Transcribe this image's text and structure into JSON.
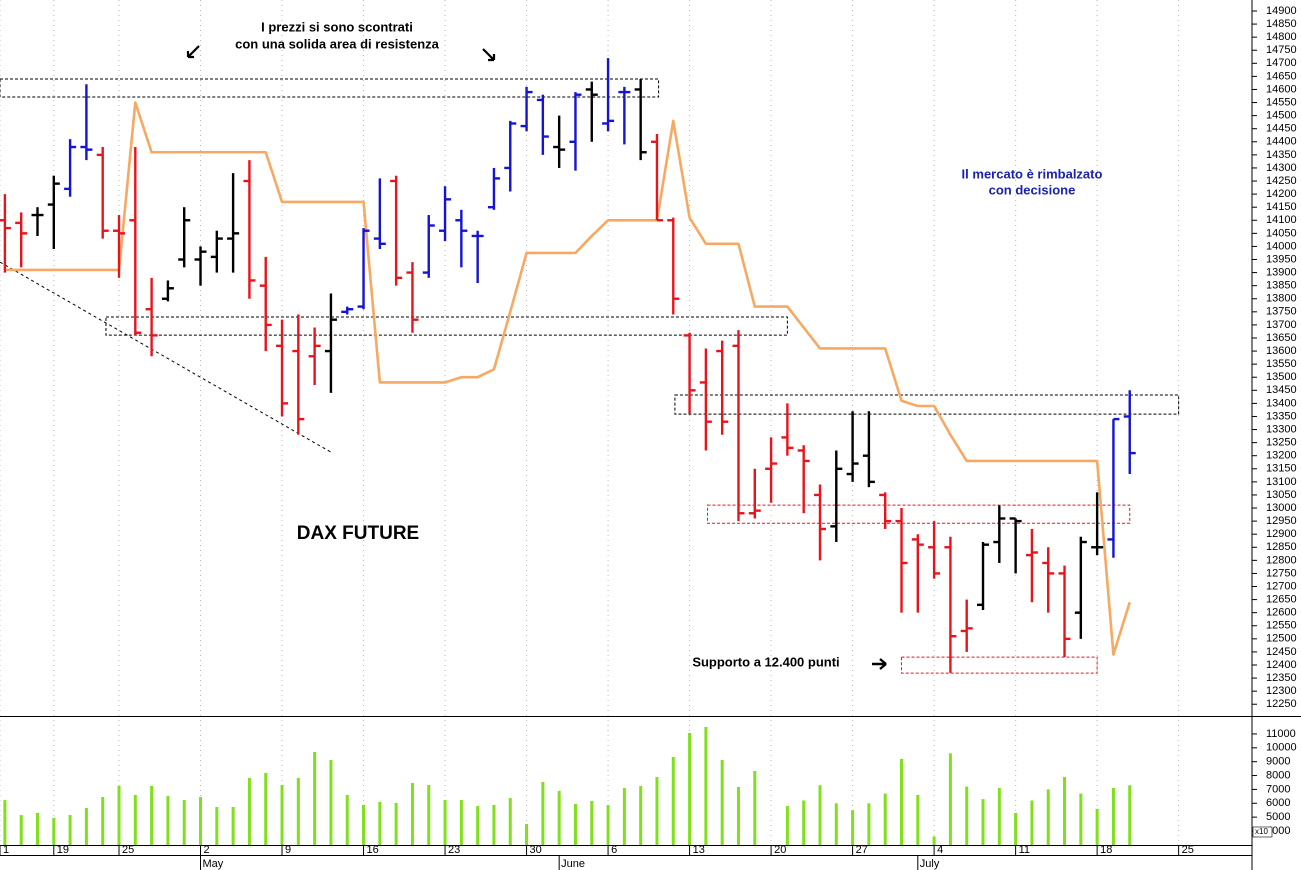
{
  "chart_data": [
    {
      "type": "ohlc",
      "title": "DAX FUTURE",
      "annotations": {
        "resistance": [
          "I prezzi si sono scontrati",
          "con una solida area di resistenza"
        ],
        "rebound": [
          "Il mercato è rimbalzato",
          "con decisione"
        ],
        "support": "Supporto a 12.400 punti"
      },
      "x": [
        0,
        1,
        2,
        3,
        4,
        5,
        6,
        7,
        8,
        9,
        10,
        11,
        12,
        13,
        14,
        15,
        16,
        17,
        18,
        19,
        20,
        21,
        22,
        23,
        24,
        25,
        26,
        27,
        28,
        29,
        30,
        31,
        32,
        33,
        34,
        35,
        36,
        37,
        38,
        39,
        40,
        41,
        42,
        43,
        44,
        45,
        46,
        47,
        48,
        49,
        50,
        51,
        52,
        53,
        54,
        55,
        56,
        57,
        58,
        59,
        60,
        61,
        62,
        63,
        64,
        65,
        66,
        67,
        68,
        69
      ],
      "open": [
        14100,
        14090,
        14120,
        14160,
        14220,
        14380,
        14350,
        14060,
        14100,
        13760,
        13800,
        13950,
        13950,
        13960,
        14030,
        14250,
        13850,
        13620,
        13600,
        13580,
        13600,
        13750,
        13770,
        14030,
        14250,
        13900,
        13900,
        14060,
        14100,
        14040,
        14150,
        14300,
        14460,
        14560,
        14380,
        14400,
        14600,
        14470,
        14590,
        14600,
        14400,
        14100,
        13660,
        13480,
        13600,
        13620,
        12980,
        13150,
        13270,
        13220,
        13050,
        12930,
        13130,
        13200,
        13050,
        12950,
        12880,
        12850,
        12850,
        12530,
        12630,
        12870,
        12960,
        12820,
        12790,
        12750,
        12600,
        12850,
        12880,
        13350
      ],
      "high": [
        14200,
        14130,
        14150,
        14270,
        14410,
        14620,
        14380,
        14120,
        14380,
        13880,
        13870,
        14150,
        14000,
        14060,
        14280,
        14330,
        13960,
        13720,
        13740,
        13690,
        13820,
        13770,
        14070,
        14260,
        14270,
        13940,
        14120,
        14230,
        14140,
        14060,
        14300,
        14480,
        14610,
        14580,
        14500,
        14590,
        14630,
        14720,
        14610,
        14640,
        14430,
        14110,
        13670,
        13610,
        13640,
        13680,
        13150,
        13270,
        13400,
        13240,
        13090,
        13220,
        13370,
        13370,
        13060,
        13000,
        12900,
        12950,
        12890,
        12650,
        12870,
        13010,
        12960,
        12920,
        12850,
        12780,
        12890,
        13060,
        13340,
        13450
      ],
      "low": [
        13900,
        13920,
        14040,
        13990,
        14190,
        14330,
        14030,
        13880,
        13660,
        13580,
        13790,
        13920,
        13850,
        13900,
        13900,
        13800,
        13600,
        13350,
        13280,
        13470,
        13440,
        13740,
        13760,
        13990,
        13850,
        13670,
        13880,
        14020,
        13920,
        13860,
        14140,
        14210,
        14440,
        14350,
        14300,
        14290,
        14400,
        14440,
        14390,
        14330,
        14100,
        13740,
        13360,
        13220,
        13280,
        12950,
        12960,
        13020,
        13200,
        12980,
        12800,
        12870,
        13100,
        13080,
        12920,
        12600,
        12600,
        12730,
        12370,
        12450,
        12610,
        12790,
        12750,
        12640,
        12600,
        12430,
        12500,
        12820,
        12810,
        13130
      ],
      "close": [
        14070,
        14050,
        14120,
        14240,
        14380,
        14370,
        14060,
        14050,
        13670,
        13660,
        13840,
        14100,
        13980,
        14030,
        14050,
        13870,
        13700,
        13400,
        13340,
        13620,
        13720,
        13760,
        14060,
        14010,
        13880,
        13720,
        14080,
        14180,
        14060,
        14040,
        14260,
        14470,
        14590,
        14420,
        14370,
        14580,
        14580,
        14480,
        14590,
        14360,
        14100,
        13800,
        13450,
        13330,
        13330,
        12980,
        12990,
        13170,
        13230,
        13180,
        12920,
        13150,
        13170,
        13100,
        12950,
        12790,
        12860,
        12750,
        12510,
        12540,
        12860,
        12960,
        12950,
        12830,
        12750,
        12500,
        12870,
        12850,
        13340,
        13210
      ],
      "bar_colors": [
        "#e8141c",
        "#e8141c",
        "#000000",
        "#000000",
        "#1414d2",
        "#1414d2",
        "#e8141c",
        "#e8141c",
        "#e8141c",
        "#e8141c",
        "#000000",
        "#000000",
        "#000000",
        "#000000",
        "#000000",
        "#e8141c",
        "#e8141c",
        "#e8141c",
        "#e8141c",
        "#e8141c",
        "#000000",
        "#1414d2",
        "#1414d2",
        "#1414d2",
        "#e8141c",
        "#e8141c",
        "#1414d2",
        "#1414d2",
        "#1414d2",
        "#1414d2",
        "#1414d2",
        "#1414d2",
        "#1414d2",
        "#1414d2",
        "#000000",
        "#1414d2",
        "#000000",
        "#1414d2",
        "#1414d2",
        "#000000",
        "#e8141c",
        "#e8141c",
        "#e8141c",
        "#e8141c",
        "#e8141c",
        "#e8141c",
        "#e8141c",
        "#e8141c",
        "#e8141c",
        "#e8141c",
        "#e8141c",
        "#000000",
        "#000000",
        "#000000",
        "#e8141c",
        "#e8141c",
        "#e8141c",
        "#e8141c",
        "#e8141c",
        "#e8141c",
        "#000000",
        "#000000",
        "#000000",
        "#e8141c",
        "#e8141c",
        "#e8141c",
        "#000000",
        "#000000",
        "#1414d2",
        "#1414d2"
      ],
      "line": {
        "color": "#f7a861",
        "values": [
          13910,
          13910,
          13910,
          13910,
          13910,
          13910,
          13910,
          13910,
          14550,
          14360,
          14360,
          14360,
          14360,
          14360,
          14360,
          14360,
          14360,
          14170,
          14170,
          14170,
          14170,
          14170,
          14170,
          13480,
          13480,
          13480,
          13480,
          13480,
          13500,
          13500,
          13530,
          13750,
          13975,
          13975,
          13975,
          13975,
          14040,
          14100,
          14100,
          14100,
          14100,
          14480,
          14110,
          14010,
          14010,
          14010,
          13770,
          13770,
          13770,
          13690,
          13610,
          13610,
          13610,
          13610,
          13610,
          13410,
          13390,
          13390,
          13280,
          13180,
          13180,
          13180,
          13180,
          13180,
          13180,
          13180,
          13180,
          13180,
          12440,
          12640
        ]
      },
      "zones": [
        {
          "x0": -0.3,
          "x1": 40.1,
          "y0": 14571,
          "y1": 14640,
          "color": "#000000"
        },
        {
          "x0": 6.2,
          "x1": 48.0,
          "y0": 13661,
          "y1": 13730,
          "color": "#000000"
        },
        {
          "x0": 41.1,
          "x1": 72.0,
          "y0": 13359,
          "y1": 13432,
          "color": "#000000"
        },
        {
          "x0": 43.1,
          "x1": 69.0,
          "y0": 12942,
          "y1": 13011,
          "color": "#e8141c"
        },
        {
          "x0": 55.0,
          "x1": 67.0,
          "y0": 12369,
          "y1": 12430,
          "color": "#e8141c"
        }
      ],
      "trendline": {
        "x": [
          -0.3,
          20.1
        ],
        "y": [
          13940,
          13210
        ]
      },
      "xlim": [
        -0.3,
        76.5
      ],
      "ylim": [
        12205,
        14942
      ],
      "yticks": [
        12250,
        12300,
        12350,
        12400,
        12450,
        12500,
        12550,
        12600,
        12650,
        12700,
        12750,
        12800,
        12850,
        12900,
        12950,
        13000,
        13050,
        13100,
        13150,
        13200,
        13250,
        13300,
        13350,
        13400,
        13450,
        13500,
        13550,
        13600,
        13650,
        13700,
        13750,
        13800,
        13850,
        13900,
        13950,
        14000,
        14050,
        14100,
        14150,
        14200,
        14250,
        14300,
        14350,
        14400,
        14450,
        14500,
        14550,
        14600,
        14650,
        14700,
        14750,
        14800,
        14850,
        14900
      ]
    },
    {
      "type": "bar",
      "color": "#80e01e",
      "unit_label": "x10",
      "x": [
        0,
        1,
        2,
        3,
        4,
        5,
        6,
        7,
        8,
        9,
        10,
        11,
        12,
        13,
        14,
        15,
        16,
        17,
        18,
        19,
        20,
        21,
        22,
        23,
        24,
        25,
        26,
        27,
        28,
        29,
        30,
        31,
        32,
        33,
        34,
        35,
        36,
        37,
        38,
        39,
        40,
        41,
        42,
        43,
        44,
        45,
        46,
        47,
        48,
        49,
        50,
        51,
        52,
        53,
        54,
        55,
        56,
        57,
        58,
        59,
        60,
        61,
        62,
        63,
        64,
        65,
        66,
        67,
        68,
        69
      ],
      "values": [
        6240,
        5150,
        5300,
        4940,
        5150,
        5660,
        6450,
        7250,
        6600,
        7250,
        6530,
        6240,
        6450,
        5730,
        5730,
        7830,
        8190,
        7320,
        7830,
        9700,
        9120,
        6600,
        5880,
        6100,
        6020,
        7460,
        7320,
        6240,
        6240,
        5800,
        5880,
        6380,
        4500,
        7540,
        6890,
        5950,
        6170,
        5880,
        7100,
        7250,
        7900,
        9340,
        11070,
        11500,
        9120,
        7180,
        8330,
        null,
        5800,
        6200,
        7300,
        6000,
        5500,
        6000,
        6700,
        9200,
        6600,
        3600,
        9600,
        7200,
        6300,
        7100,
        5300,
        6200,
        7000,
        7900,
        6700,
        5600,
        7100,
        7300
      ],
      "xlim": [
        -0.3,
        76.5
      ],
      "ylim": [
        2990,
        12150
      ],
      "yticks": [
        4000,
        5000,
        6000,
        7000,
        8000,
        9000,
        10000,
        11000
      ],
      "xgrid": true,
      "xticks": [
        {
          "value": -0.3,
          "label": "1"
        },
        {
          "value": 3,
          "label": "19"
        },
        {
          "value": 7,
          "label": "25"
        },
        {
          "value": 12,
          "label": "2"
        },
        {
          "value": 17,
          "label": "9"
        },
        {
          "value": 22,
          "label": "16"
        },
        {
          "value": 27,
          "label": "23"
        },
        {
          "value": 32,
          "label": "30"
        },
        {
          "value": 37,
          "label": "6"
        },
        {
          "value": 42,
          "label": "13"
        },
        {
          "value": 47,
          "label": "20"
        },
        {
          "value": 52,
          "label": "27"
        },
        {
          "value": 57,
          "label": "4"
        },
        {
          "value": 62,
          "label": "11"
        },
        {
          "value": 67,
          "label": "18"
        },
        {
          "value": 72,
          "label": "25"
        }
      ],
      "month_ticks": [
        {
          "value": 12,
          "label": "May"
        },
        {
          "value": 34,
          "label": "June"
        },
        {
          "value": 56,
          "label": "July"
        }
      ]
    }
  ]
}
